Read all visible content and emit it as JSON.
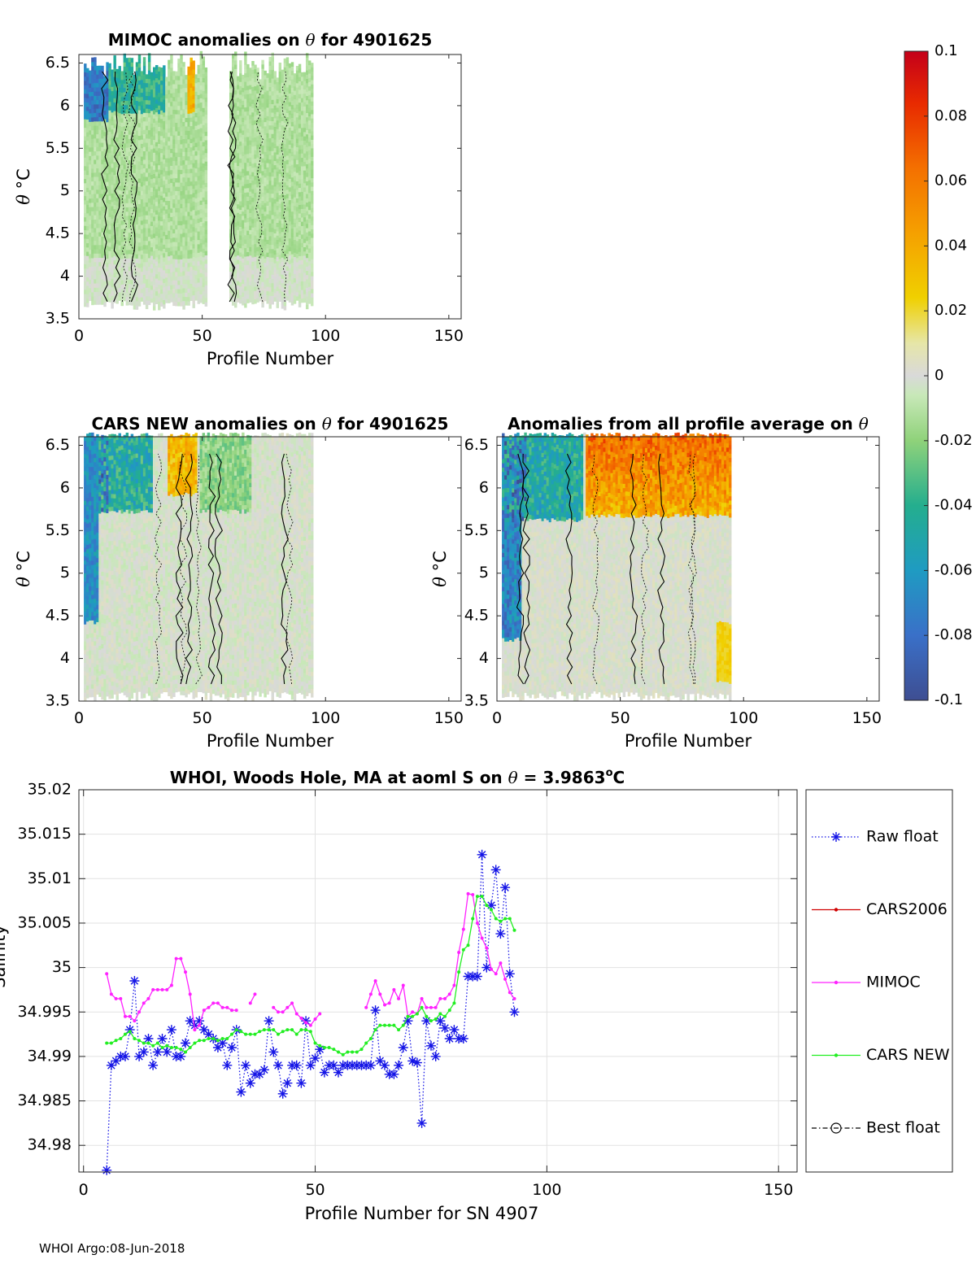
{
  "footer": "WHOI Argo:08-Jun-2018",
  "colors": {
    "raw_float": "#1515e6",
    "cars2006": "#d00000",
    "mimoc": "#ff22ff",
    "cars_new": "#22ee22",
    "best_float": "#000000"
  },
  "chart_data": [
    {
      "type": "heatmap",
      "id": "mimoc",
      "title_prefix": "MIMOC anomalies on ",
      "title_symbol": "θ",
      "title_suffix": "  for 4901625",
      "xlabel": "Profile Number",
      "ylabel_sym": "θ",
      "ylabel_unit": "°C",
      "xlim": [
        0,
        155
      ],
      "ylim": [
        3.5,
        6.6
      ],
      "xticks": [
        0,
        50,
        100,
        150
      ],
      "xtick_labels": [
        "0",
        "50",
        "100",
        "150"
      ],
      "yticks": [
        3.5,
        4,
        4.5,
        5,
        5.5,
        6,
        6.5
      ],
      "ytick_labels": [
        "3.5",
        "4",
        "4.5",
        "5",
        "5.5",
        "6",
        "6.5"
      ],
      "data_extent": {
        "x": [
          2,
          95
        ],
        "theta": [
          3.6,
          6.6
        ],
        "gaps": [
          [
            52,
            61
          ]
        ]
      }
    },
    {
      "type": "heatmap",
      "id": "cars_new",
      "title_prefix": "CARS NEW anomalies on ",
      "title_symbol": "θ",
      "title_suffix": " for 4901625",
      "xlabel": "Profile Number",
      "ylabel_sym": "θ",
      "ylabel_unit": "°C",
      "xlim": [
        0,
        155
      ],
      "ylim": [
        3.5,
        6.6
      ],
      "xticks": [
        0,
        50,
        100,
        150
      ],
      "xtick_labels": [
        "0",
        "50",
        "100",
        "150"
      ],
      "yticks": [
        3.5,
        4,
        4.5,
        5,
        5.5,
        6,
        6.5
      ],
      "ytick_labels": [
        "3.5",
        "4",
        "4.5",
        "5",
        "5.5",
        "6",
        "6.5"
      ],
      "data_extent": {
        "x": [
          2,
          95
        ],
        "theta": [
          3.5,
          6.6
        ],
        "gaps": []
      }
    },
    {
      "type": "heatmap",
      "id": "all_profile",
      "title_prefix": "Anomalies from all profile average on ",
      "title_symbol": "θ",
      "title_suffix": "",
      "xlabel": "Profile Number",
      "ylabel_sym": "θ",
      "ylabel_unit": "°C",
      "xlim": [
        0,
        155
      ],
      "ylim": [
        3.5,
        6.6
      ],
      "xticks": [
        0,
        50,
        100,
        150
      ],
      "xtick_labels": [
        "0",
        "50",
        "100",
        "150"
      ],
      "yticks": [
        3.5,
        4,
        4.5,
        5,
        5.5,
        6,
        6.5
      ],
      "ytick_labels": [
        "3.5",
        "4",
        "4.5",
        "5",
        "5.5",
        "6",
        "6.5"
      ],
      "data_extent": {
        "x": [
          2,
          95
        ],
        "theta": [
          3.5,
          6.6
        ],
        "gaps": []
      }
    },
    {
      "type": "colorbar",
      "id": "colorbar",
      "range": [
        -0.1,
        0.1
      ],
      "ticks": [
        0.1,
        0.08,
        0.06,
        0.04,
        0.02,
        0,
        -0.02,
        -0.04,
        -0.06,
        -0.08,
        -0.1
      ],
      "tick_labels": [
        "0.1",
        "0.08",
        "0.06",
        "0.04",
        "0.02",
        "0",
        "-0.02",
        "-0.04",
        "-0.06",
        "-0.08",
        "-0.1"
      ]
    },
    {
      "type": "line",
      "id": "salinity",
      "title_prefix": "WHOI, Woods Hole, MA at aoml S on ",
      "title_symbol": "θ",
      "title_suffix": " = 3.9863",
      "title_sup": "o",
      "title_end": "C",
      "xlabel": "Profile Number for SN 4907",
      "ylabel": "Salinity",
      "xlim": [
        -1,
        154
      ],
      "ylim": [
        34.977,
        35.02
      ],
      "xticks": [
        0,
        50,
        100,
        150
      ],
      "xtick_labels": [
        "0",
        "50",
        "100",
        "150"
      ],
      "yticks": [
        34.98,
        34.985,
        34.99,
        34.995,
        35.0,
        35.005,
        35.01,
        35.015,
        35.02
      ],
      "ytick_labels": [
        "34.98",
        "34.985",
        "34.99",
        "34.995",
        "35",
        "35.005",
        "35.01",
        "35.015",
        "35.02"
      ],
      "grid": true,
      "legend": [
        "Raw float",
        "CARS2006",
        "MIMOC",
        "CARS NEW",
        "Best float"
      ],
      "legend_placement": "outside-right",
      "series": [
        {
          "name": "Raw float",
          "style": "dotted-star",
          "x": [
            5,
            6,
            7,
            8,
            9,
            10,
            11,
            12,
            13,
            14,
            15,
            16,
            17,
            18,
            19,
            20,
            21,
            22,
            23,
            24,
            25,
            26,
            27,
            28,
            29,
            30,
            31,
            32,
            33,
            34,
            35,
            36,
            37,
            38,
            39,
            40,
            41,
            42,
            43,
            44,
            45,
            46,
            47,
            48,
            49,
            50,
            51,
            52,
            53,
            54,
            55,
            56,
            57,
            58,
            59,
            60,
            61,
            62,
            63,
            64,
            65,
            66,
            67,
            68,
            69,
            70,
            71,
            72,
            73,
            74,
            75,
            76,
            77,
            78,
            79,
            80,
            81,
            82,
            83,
            84,
            85,
            86,
            87,
            88,
            89,
            90,
            91,
            92,
            93
          ],
          "values": [
            34.9772,
            34.989,
            34.9895,
            34.99,
            34.99,
            34.993,
            34.9985,
            34.99,
            34.9905,
            34.992,
            34.989,
            34.9905,
            34.992,
            34.9905,
            34.993,
            34.99,
            34.99,
            34.9915,
            34.994,
            34.9935,
            34.994,
            34.993,
            34.9925,
            34.992,
            34.991,
            34.9915,
            34.989,
            34.991,
            34.993,
            34.986,
            34.989,
            34.987,
            34.988,
            34.988,
            34.9885,
            34.994,
            34.9905,
            34.989,
            34.9858,
            34.987,
            34.989,
            34.989,
            34.987,
            34.994,
            34.989,
            34.9898,
            34.9908,
            34.9882,
            34.989,
            34.989,
            34.9882,
            34.989,
            34.989,
            34.989,
            34.989,
            34.989,
            34.989,
            34.989,
            34.9952,
            34.9895,
            34.989,
            34.988,
            34.988,
            34.989,
            34.991,
            34.994,
            34.9895,
            34.9893,
            34.9825,
            34.994,
            34.9912,
            34.99,
            34.994,
            34.9932,
            34.992,
            34.993,
            34.992,
            34.992,
            34.999,
            34.999,
            34.999,
            35.0127,
            35.0,
            35.007,
            35.011,
            35.0038,
            35.009,
            34.9993,
            34.995
          ]
        },
        {
          "name": "CARS2006",
          "style": "solid-dot",
          "x": [],
          "values": []
        },
        {
          "name": "MIMOC",
          "style": "solid-dot",
          "segments": [
            {
              "x": [
                5,
                6,
                7,
                8,
                9,
                10,
                11,
                12,
                13,
                14,
                15,
                16,
                17,
                18,
                19,
                20,
                21,
                22,
                23,
                24,
                25,
                26,
                27,
                28,
                29,
                30,
                31,
                32,
                33
              ],
              "values": [
                34.9993,
                34.997,
                34.9965,
                34.9965,
                34.9945,
                34.9945,
                34.994,
                34.995,
                34.996,
                34.9965,
                34.9975,
                34.9975,
                34.9975,
                34.9975,
                34.998,
                35.001,
                35.001,
                34.9995,
                34.997,
                34.993,
                34.9935,
                34.9952,
                34.9955,
                34.996,
                34.996,
                34.9955,
                34.9955,
                34.9952,
                34.9952
              ]
            },
            {
              "x": [
                36,
                37
              ],
              "values": [
                34.996,
                34.997
              ]
            },
            {
              "x": [
                41,
                42,
                43,
                44,
                45,
                46,
                47,
                48,
                49,
                50,
                51
              ],
              "values": [
                34.9955,
                34.995,
                34.995,
                34.9955,
                34.996,
                34.9948,
                34.9943,
                34.9938,
                34.9935,
                34.9942,
                34.9948
              ]
            },
            {
              "x": [
                61,
                62,
                63,
                64,
                65,
                66,
                67,
                68,
                69,
                70,
                71,
                72,
                73,
                74,
                75,
                76,
                77,
                78,
                79,
                80,
                81,
                82,
                83,
                84,
                85,
                86,
                87,
                88,
                89,
                90,
                91,
                92,
                93
              ],
              "values": [
                34.9955,
                34.997,
                34.9985,
                34.997,
                34.9958,
                34.996,
                34.9975,
                34.9965,
                34.998,
                34.9945,
                34.995,
                34.9948,
                34.9965,
                34.9955,
                34.9955,
                34.9955,
                34.9965,
                34.9965,
                34.997,
                34.998,
                35.0017,
                35.0043,
                35.0083,
                35.0082,
                35.005,
                35.0033,
                35.0022,
                34.9998,
                34.9993,
                35.0005,
                34.9987,
                34.9972,
                34.9965
              ]
            }
          ]
        },
        {
          "name": "CARS NEW",
          "style": "solid-dot",
          "x": [
            5,
            6,
            7,
            8,
            9,
            10,
            11,
            12,
            13,
            14,
            15,
            16,
            17,
            18,
            19,
            20,
            21,
            22,
            23,
            24,
            25,
            26,
            27,
            28,
            29,
            30,
            31,
            32,
            33,
            34,
            35,
            36,
            37,
            38,
            39,
            40,
            41,
            42,
            43,
            44,
            45,
            46,
            47,
            48,
            49,
            50,
            51,
            52,
            53,
            54,
            55,
            56,
            57,
            58,
            59,
            60,
            61,
            62,
            63,
            64,
            65,
            66,
            67,
            68,
            69,
            70,
            71,
            72,
            73,
            74,
            75,
            76,
            77,
            78,
            79,
            80,
            81,
            82,
            83,
            84,
            85,
            86,
            87,
            88,
            89,
            90,
            91,
            92,
            93
          ],
          "values": [
            34.9915,
            34.9915,
            34.9918,
            34.992,
            34.9925,
            34.9928,
            34.992,
            34.9918,
            34.9915,
            34.9915,
            34.9912,
            34.9915,
            34.991,
            34.9912,
            34.991,
            34.991,
            34.9908,
            34.9905,
            34.991,
            34.9915,
            34.9918,
            34.9918,
            34.992,
            34.992,
            34.9918,
            34.992,
            34.992,
            34.9925,
            34.993,
            34.9928,
            34.9925,
            34.9925,
            34.9925,
            34.9928,
            34.993,
            34.993,
            34.993,
            34.9925,
            34.9928,
            34.993,
            34.993,
            34.9925,
            34.993,
            34.993,
            34.9928,
            34.9915,
            34.9912,
            34.991,
            34.991,
            34.9908,
            34.9905,
            34.9902,
            34.9905,
            34.9905,
            34.9905,
            34.9908,
            34.9915,
            34.992,
            34.993,
            34.9935,
            34.9935,
            34.9935,
            34.9935,
            34.993,
            34.9935,
            34.9945,
            34.9945,
            34.9948,
            34.9955,
            34.9945,
            34.994,
            34.9942,
            34.9948,
            34.9945,
            34.9952,
            34.996,
            34.9995,
            35.002,
            35.0025,
            35.0055,
            35.008,
            35.008,
            35.007,
            35.0065,
            35.0055,
            35.0052,
            35.0055,
            35.0055,
            35.0042
          ]
        },
        {
          "name": "Best float",
          "style": "dashdot-circle",
          "x": [],
          "values": []
        }
      ]
    }
  ]
}
